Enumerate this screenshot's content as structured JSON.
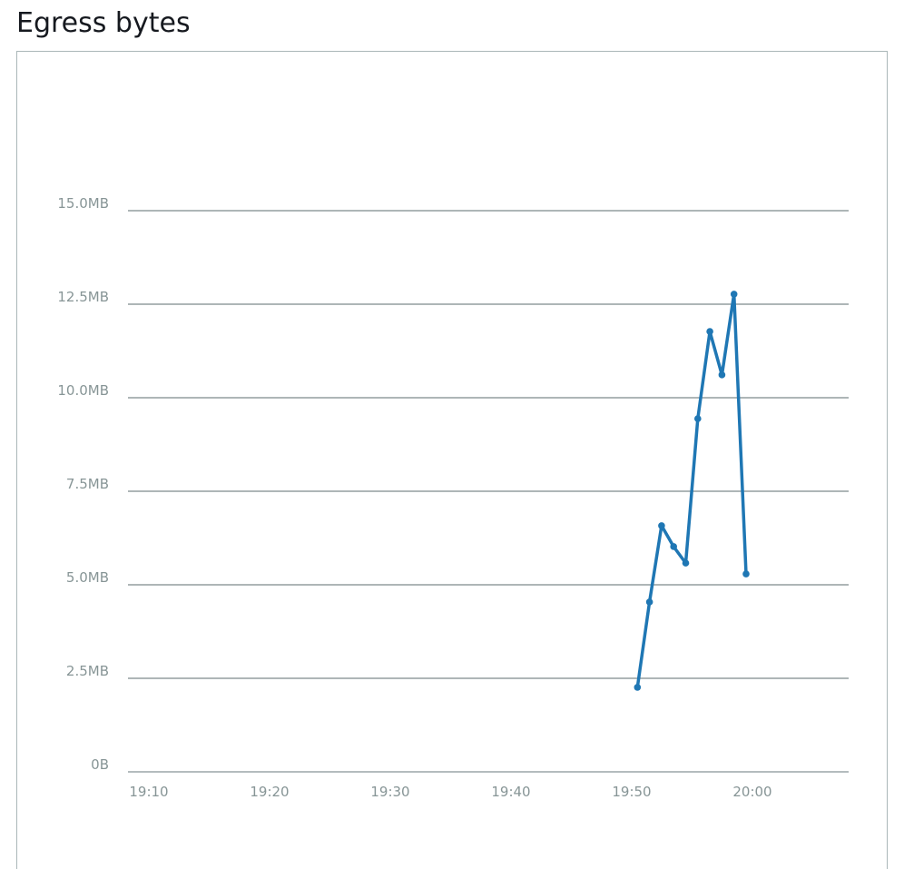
{
  "title": "Egress bytes",
  "chart_data": {
    "type": "line",
    "title": "Egress bytes",
    "xlabel": "",
    "ylabel": "",
    "x_ticks": [
      "19:10",
      "19:20",
      "19:30",
      "19:40",
      "19:50",
      "20:00"
    ],
    "y_ticks": [
      "0B",
      "2.5MB",
      "5.0MB",
      "7.5MB",
      "10.0MB",
      "12.5MB",
      "15.0MB"
    ],
    "ylim": [
      0,
      15
    ],
    "y_unit": "MB",
    "grid": true,
    "series": [
      {
        "color": "#1f77b4",
        "x": [
          "19:51",
          "19:52",
          "19:53",
          "19:54",
          "19:55",
          "19:56",
          "19:57",
          "19:58",
          "19:59",
          "20:00"
        ],
        "values": [
          2.26,
          4.54,
          6.58,
          6.02,
          5.58,
          9.44,
          11.77,
          10.61,
          12.77,
          5.29
        ]
      }
    ]
  }
}
